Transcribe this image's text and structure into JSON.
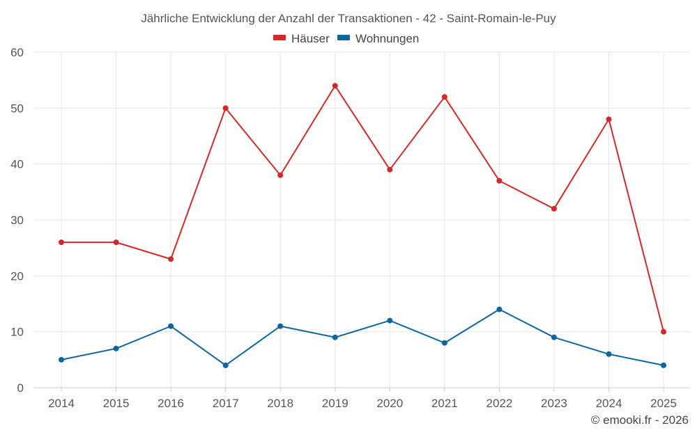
{
  "chart_data": {
    "type": "line",
    "title": "Jährliche Entwicklung der Anzahl der Transaktionen - 42 - Saint-Romain-le-Puy",
    "categories": [
      "2014",
      "2015",
      "2016",
      "2017",
      "2018",
      "2019",
      "2020",
      "2021",
      "2022",
      "2023",
      "2024",
      "2025"
    ],
    "series": [
      {
        "name": "Häuser",
        "color": "#d62728",
        "values": [
          26,
          26,
          23,
          50,
          38,
          54,
          39,
          52,
          37,
          32,
          48,
          10
        ]
      },
      {
        "name": "Wohnungen",
        "color": "#0b66a0",
        "values": [
          5,
          7,
          11,
          4,
          11,
          9,
          12,
          8,
          14,
          9,
          6,
          4
        ]
      }
    ],
    "ylim": [
      0,
      60
    ],
    "yticks": [
      0,
      10,
      20,
      30,
      40,
      50,
      60
    ],
    "xlabel": "",
    "ylabel": "",
    "grid": true,
    "legend": "top-center"
  },
  "footer": {
    "copyright": "© emooki.fr - 2026"
  }
}
